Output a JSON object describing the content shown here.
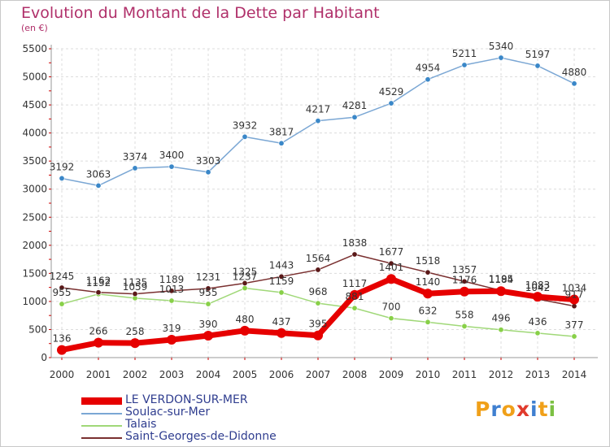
{
  "title": "Evolution du Montant de la Dette par Habitant",
  "unit_label": "(en €)",
  "logo": {
    "text": "Proxiti",
    "colors": [
      "#f0a019",
      "#3f7fd0",
      "#f0a019",
      "#e03a2c",
      "#3f7fd0",
      "#f0a019",
      "#7cc043"
    ]
  },
  "chart_data": {
    "type": "line",
    "title": "Evolution du Montant de la Dette par Habitant",
    "ylabel": "(en €)",
    "xlabel": "",
    "x": [
      "2000",
      "2001",
      "2002",
      "2003",
      "2004",
      "2005",
      "2006",
      "2007",
      "2008",
      "2009",
      "2010",
      "2011",
      "2012",
      "2013",
      "2014"
    ],
    "ylim": [
      0,
      5500
    ],
    "yticks": [
      0,
      500,
      1000,
      1500,
      2000,
      2500,
      3000,
      3500,
      4000,
      4500,
      5000,
      5500
    ],
    "grid": true,
    "legend_position": "bottom",
    "series": [
      {
        "name": "LE VERDON-SUR-MER",
        "color": "#e60000",
        "point_color": "#e60000",
        "emphasis": true,
        "values": [
          136,
          266,
          258,
          319,
          390,
          480,
          437,
          395,
          1117,
          1401,
          1140,
          1176,
          1184,
          1083,
          1034
        ],
        "labels": [
          "136",
          "266",
          "258",
          "319",
          "390",
          "480",
          "437",
          "395",
          "1117",
          "1401",
          "1140",
          "1176",
          "1184",
          "1083",
          "1034"
        ]
      },
      {
        "name": "Soulac-sur-Mer",
        "color": "#7ba7d4",
        "point_color": "#3a87c8",
        "values": [
          3192,
          3063,
          3374,
          3400,
          3303,
          3932,
          3817,
          4217,
          4281,
          4529,
          4954,
          5211,
          5340,
          5197,
          4880
        ],
        "labels": [
          "3192",
          "3063",
          "3374",
          "3400",
          "3303",
          "3932",
          "3817",
          "4217",
          "4281",
          "4529",
          "4954",
          "5211",
          "5340",
          "5197",
          "4880"
        ]
      },
      {
        "name": "Talais",
        "color": "#a0d878",
        "point_color": "#88d048",
        "values": [
          955,
          1132,
          1059,
          1013,
          955,
          1237,
          1159,
          968,
          881,
          700,
          632,
          558,
          496,
          436,
          377
        ],
        "labels": [
          "955",
          "1132",
          "1059",
          "1013",
          "955",
          "1237",
          "1159",
          "968",
          "881",
          "700",
          "632",
          "558",
          "496",
          "436",
          "377"
        ]
      },
      {
        "name": "Saint-Georges-de-Didonne",
        "color": "#7a3030",
        "point_color": "#5a1818",
        "values": [
          1245,
          1162,
          1135,
          1189,
          1231,
          1325,
          1443,
          1564,
          1838,
          1677,
          1518,
          1357,
          1195,
          1042,
          917
        ],
        "labels": [
          "1245",
          "1162",
          "1135",
          "1189",
          "1231",
          "1325",
          "1443",
          "1564",
          "1838",
          "1677",
          "1518",
          "1357",
          "1195",
          "1042",
          "917"
        ]
      }
    ]
  }
}
